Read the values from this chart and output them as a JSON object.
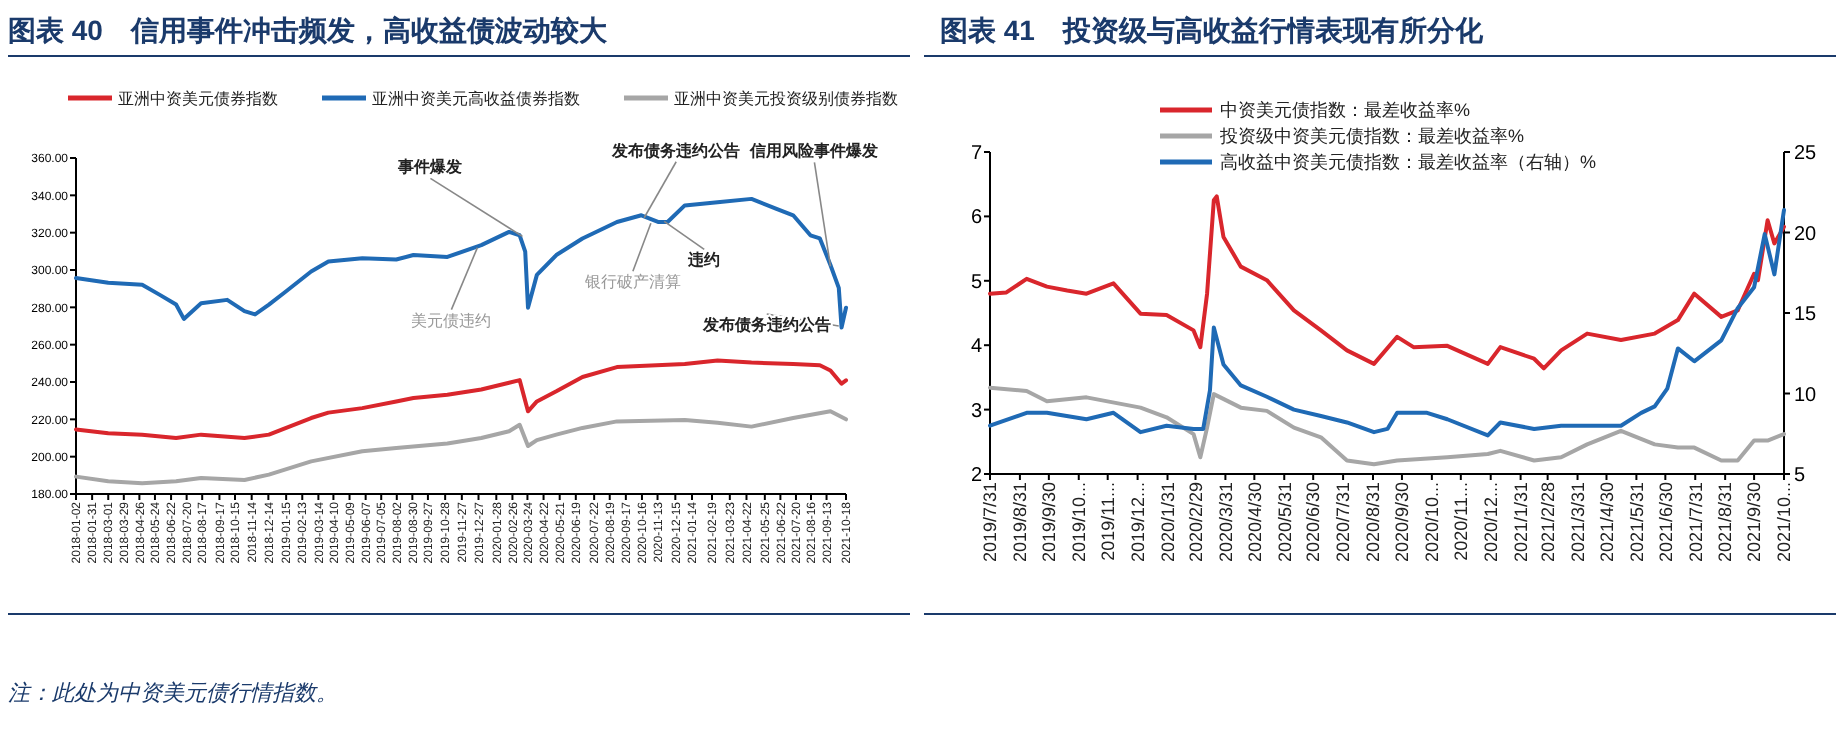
{
  "chart_data": [
    {
      "type": "line",
      "title": "图表 40　信用事件冲击频发，高收益债波动较大",
      "legend": "top",
      "xlim": [
        "2018-01-02",
        "2021-10-18"
      ],
      "ylim": [
        180,
        360
      ],
      "yticks": [
        {
          "value": 180,
          "label": "180.00"
        },
        {
          "value": 200,
          "label": "200.00"
        },
        {
          "value": 220,
          "label": "220.00"
        },
        {
          "value": 240,
          "label": "240.00"
        },
        {
          "value": 260,
          "label": "260.00"
        },
        {
          "value": 280,
          "label": "280.00"
        },
        {
          "value": 300,
          "label": "300.00"
        },
        {
          "value": 320,
          "label": "320.00"
        },
        {
          "value": 340,
          "label": "340.00"
        },
        {
          "value": 360,
          "label": "360.00"
        }
      ],
      "xticks": [
        {
          "value": "2018-01-02",
          "label": "2018-01-02"
        },
        {
          "value": "2018-01-31",
          "label": "2018-01-31"
        },
        {
          "value": "2018-03-01",
          "label": "2018-03-01"
        },
        {
          "value": "2018-03-29",
          "label": "2018-03-29"
        },
        {
          "value": "2018-04-26",
          "label": "2018-04-26"
        },
        {
          "value": "2018-05-24",
          "label": "2018-05-24"
        },
        {
          "value": "2018-06-22",
          "label": "2018-06-22"
        },
        {
          "value": "2018-07-20",
          "label": "2018-07-20"
        },
        {
          "value": "2018-08-17",
          "label": "2018-08-17"
        },
        {
          "value": "2018-09-17",
          "label": "2018-09-17"
        },
        {
          "value": "2018-10-15",
          "label": "2018-10-15"
        },
        {
          "value": "2018-11-14",
          "label": "2018-11-14"
        },
        {
          "value": "2018-12-14",
          "label": "2018-12-14"
        },
        {
          "value": "2019-01-15",
          "label": "2019-01-15"
        },
        {
          "value": "2019-02-13",
          "label": "2019-02-13"
        },
        {
          "value": "2019-03-14",
          "label": "2019-03-14"
        },
        {
          "value": "2019-04-10",
          "label": "2019-04-10"
        },
        {
          "value": "2019-05-09",
          "label": "2019-05-09"
        },
        {
          "value": "2019-06-07",
          "label": "2019-06-07"
        },
        {
          "value": "2019-07-05",
          "label": "2019-07-05"
        },
        {
          "value": "2019-08-02",
          "label": "2019-08-02"
        },
        {
          "value": "2019-08-30",
          "label": "2019-08-30"
        },
        {
          "value": "2019-09-27",
          "label": "2019-09-27"
        },
        {
          "value": "2019-10-28",
          "label": "2019-10-28"
        },
        {
          "value": "2019-11-27",
          "label": "2019-11-27"
        },
        {
          "value": "2019-12-27",
          "label": "2019-12-27"
        },
        {
          "value": "2020-01-28",
          "label": "2020-01-28"
        },
        {
          "value": "2020-02-26",
          "label": "2020-02-26"
        },
        {
          "value": "2020-03-24",
          "label": "2020-03-24"
        },
        {
          "value": "2020-04-22",
          "label": "2020-04-22"
        },
        {
          "value": "2020-05-21",
          "label": "2020-05-21"
        },
        {
          "value": "2020-06-19",
          "label": "2020-06-19"
        },
        {
          "value": "2020-07-22",
          "label": "2020-07-22"
        },
        {
          "value": "2020-08-19",
          "label": "2020-08-19"
        },
        {
          "value": "2020-09-17",
          "label": "2020-09-17"
        },
        {
          "value": "2020-10-16",
          "label": "2020-10-16"
        },
        {
          "value": "2020-11-13",
          "label": "2020-11-13"
        },
        {
          "value": "2020-12-15",
          "label": "2020-12-15"
        },
        {
          "value": "2021-01-14",
          "label": "2021-01-14"
        },
        {
          "value": "2021-02-19",
          "label": "2021-02-19"
        },
        {
          "value": "2021-03-23",
          "label": "2021-03-23"
        },
        {
          "value": "2021-04-22",
          "label": "2021-04-22"
        },
        {
          "value": "2021-05-25",
          "label": "2021-05-25"
        },
        {
          "value": "2021-06-22",
          "label": "2021-06-22"
        },
        {
          "value": "2021-07-20",
          "label": "2021-07-20"
        },
        {
          "value": "2021-08-16",
          "label": "2021-08-16"
        },
        {
          "value": "2021-09-13",
          "label": "2021-09-13"
        },
        {
          "value": "2021-10-18",
          "label": "2021-10-18"
        }
      ],
      "series": [
        {
          "name": "亚洲中资美元债券指数",
          "color": "#d9262c",
          "x": [
            "2018-01-02",
            "2018-03-01",
            "2018-05-01",
            "2018-07-01",
            "2018-08-15",
            "2018-11-01",
            "2018-12-15",
            "2019-03-01",
            "2019-04-01",
            "2019-06-01",
            "2019-08-01",
            "2019-09-01",
            "2019-11-01",
            "2020-01-01",
            "2020-02-20",
            "2020-03-10",
            "2020-03-25",
            "2020-04-10",
            "2020-05-15",
            "2020-07-01",
            "2020-09-01",
            "2021-01-01",
            "2021-03-01",
            "2021-05-01",
            "2021-07-15",
            "2021-09-01",
            "2021-09-20",
            "2021-10-10",
            "2021-10-18"
          ],
          "values": [
            214.6,
            212.5,
            211.8,
            210,
            211.8,
            210,
            211.8,
            220.7,
            223.6,
            226,
            229.6,
            231.4,
            233.2,
            236,
            239.6,
            241,
            224.3,
            229.6,
            235,
            242.7,
            248,
            249.7,
            251.5,
            250.4,
            249.7,
            249,
            246.2,
            239.1,
            240.9
          ]
        },
        {
          "name": "亚洲中资美元高收益债券指数",
          "color": "#1f6ab5",
          "x": [
            "2018-01-02",
            "2018-03-01",
            "2018-05-01",
            "2018-06-01",
            "2018-07-01",
            "2018-07-15",
            "2018-08-15",
            "2018-10-01",
            "2018-11-01",
            "2018-11-20",
            "2018-12-15",
            "2019-01-15",
            "2019-03-01",
            "2019-04-01",
            "2019-06-01",
            "2019-08-01",
            "2019-09-01",
            "2019-11-01",
            "2020-01-01",
            "2020-02-20",
            "2020-03-10",
            "2020-03-20",
            "2020-03-25",
            "2020-04-10",
            "2020-05-15",
            "2020-07-01",
            "2020-09-01",
            "2020-10-15",
            "2020-11-15",
            "2020-12-01",
            "2021-01-01",
            "2021-03-01",
            "2021-05-01",
            "2021-06-15",
            "2021-07-15",
            "2021-08-15",
            "2021-09-01",
            "2021-09-20",
            "2021-10-05",
            "2021-10-10",
            "2021-10-18"
          ],
          "values": [
            295.7,
            293.2,
            292.1,
            286.8,
            281.5,
            273.8,
            282.2,
            284,
            278,
            276.2,
            281.5,
            288.6,
            299.2,
            304.5,
            306.3,
            305.6,
            308,
            307,
            313.3,
            320.4,
            318.6,
            309.8,
            279.8,
            297.4,
            308,
            316.9,
            325.7,
            329.3,
            325.7,
            325.7,
            334.6,
            336.3,
            338.1,
            332.8,
            329.3,
            318.6,
            316.9,
            302.7,
            290.4,
            269.2,
            279.8
          ]
        },
        {
          "name": "亚洲中资美元投资级别债券指数",
          "color": "#a6a6a6",
          "x": [
            "2018-01-02",
            "2018-03-01",
            "2018-05-01",
            "2018-07-01",
            "2018-08-15",
            "2018-11-01",
            "2018-12-15",
            "2019-03-01",
            "2019-06-01",
            "2019-08-01",
            "2019-11-01",
            "2020-01-01",
            "2020-02-20",
            "2020-03-10",
            "2020-03-25",
            "2020-04-10",
            "2020-05-15",
            "2020-07-01",
            "2020-09-01",
            "2021-01-01",
            "2021-03-01",
            "2021-05-01",
            "2021-07-15",
            "2021-09-20",
            "2021-10-18"
          ],
          "values": [
            189.3,
            186.8,
            185.7,
            186.8,
            188.6,
            187.5,
            190.4,
            197.5,
            202.9,
            204.6,
            207.1,
            210,
            213.6,
            217.1,
            205.7,
            208.9,
            211.8,
            215.4,
            218.9,
            219.6,
            218.2,
            216.1,
            220.7,
            224.3,
            220
          ]
        }
      ],
      "annotations": [
        {
          "text": "事件爆发",
          "x": "2020-03-15",
          "y": 318
        },
        {
          "text": "美元债违约",
          "x": "2019-12-25",
          "y": 312
        },
        {
          "text": "发布债务违约公告",
          "x": "2020-10-20",
          "y": 328
        },
        {
          "text": "违约",
          "x": "2020-11-25",
          "y": 326
        },
        {
          "text": "银行破产清算",
          "x": "2020-11-01",
          "y": 325
        },
        {
          "text": "信用风险事件爆发",
          "x": "2021-09-20",
          "y": 302
        },
        {
          "text": "发布债务违约公告",
          "x": "2021-10-05",
          "y": 270
        },
        "注：此处为中资美元债行情指数。"
      ]
    },
    {
      "type": "line",
      "title": "图表 41　投资级与高收益行情表现有所分化",
      "legend": "top",
      "xlim": [
        "2019-07-31",
        "2021-10-31"
      ],
      "ylim": [
        2,
        7
      ],
      "yticks": [
        2,
        3,
        4,
        5,
        6,
        7
      ],
      "y2lim": [
        5,
        25
      ],
      "y2ticks": [
        5,
        10,
        15,
        20,
        25
      ],
      "xticks": [
        {
          "value": "2019-07-31",
          "label": "2019/7/31"
        },
        {
          "value": "2019-08-31",
          "label": "2019/8/31"
        },
        {
          "value": "2019-09-30",
          "label": "2019/9/30"
        },
        {
          "value": "2019-10-31",
          "label": "2019/10..."
        },
        {
          "value": "2019-11-30",
          "label": "2019/11..."
        },
        {
          "value": "2019-12-31",
          "label": "2019/12..."
        },
        {
          "value": "2020-01-31",
          "label": "2020/1/31"
        },
        {
          "value": "2020-02-29",
          "label": "2020/2/29"
        },
        {
          "value": "2020-03-31",
          "label": "2020/3/31"
        },
        {
          "value": "2020-04-30",
          "label": "2020/4/30"
        },
        {
          "value": "2020-05-31",
          "label": "2020/5/31"
        },
        {
          "value": "2020-06-30",
          "label": "2020/6/30"
        },
        {
          "value": "2020-07-31",
          "label": "2020/7/31"
        },
        {
          "value": "2020-08-31",
          "label": "2020/8/31"
        },
        {
          "value": "2020-09-30",
          "label": "2020/9/30"
        },
        {
          "value": "2020-10-31",
          "label": "2020/10..."
        },
        {
          "value": "2020-11-30",
          "label": "2020/11..."
        },
        {
          "value": "2020-12-31",
          "label": "2020/12..."
        },
        {
          "value": "2021-01-31",
          "label": "2021/1/31"
        },
        {
          "value": "2021-02-28",
          "label": "2021/2/28"
        },
        {
          "value": "2021-03-31",
          "label": "2021/3/31"
        },
        {
          "value": "2021-04-30",
          "label": "2021/4/30"
        },
        {
          "value": "2021-05-31",
          "label": "2021/5/31"
        },
        {
          "value": "2021-06-30",
          "label": "2021/6/30"
        },
        {
          "value": "2021-07-31",
          "label": "2021/7/31"
        },
        {
          "value": "2021-08-31",
          "label": "2021/8/31"
        },
        {
          "value": "2021-09-30",
          "label": "2021/9/30"
        },
        {
          "value": "2021-10-31",
          "label": "2021/10..."
        }
      ],
      "series": [
        {
          "name": "中资美元债指数：最差收益率%",
          "color": "#d9262c",
          "x": [
            "2019-07-31",
            "2019-08-17",
            "2019-09-07",
            "2019-09-28",
            "2019-10-19",
            "2019-11-08",
            "2019-12-06",
            "2020-01-03",
            "2020-01-30",
            "2020-02-27",
            "2020-03-05",
            "2020-03-12",
            "2020-03-19",
            "2020-03-22",
            "2020-03-29",
            "2020-04-16",
            "2020-05-13",
            "2020-06-10",
            "2020-07-08",
            "2020-08-04",
            "2020-09-01",
            "2020-09-25",
            "2020-10-12",
            "2020-11-16",
            "2020-12-28",
            "2021-01-10",
            "2021-02-14",
            "2021-02-24",
            "2021-03-14",
            "2021-04-10",
            "2021-05-15",
            "2021-06-19",
            "2021-07-13",
            "2021-07-30",
            "2021-08-27",
            "2021-09-13",
            "2021-09-30",
            "2021-10-04",
            "2021-10-14",
            "2021-10-21",
            "2021-10-31"
          ],
          "values": [
            4.8,
            4.82,
            5.03,
            4.91,
            4.85,
            4.8,
            4.96,
            4.49,
            4.47,
            4.23,
            3.97,
            4.8,
            6.25,
            6.31,
            5.68,
            5.22,
            5.01,
            4.54,
            4.23,
            3.92,
            3.71,
            4.13,
            3.97,
            3.99,
            3.71,
            3.97,
            3.79,
            3.64,
            3.92,
            4.18,
            4.08,
            4.18,
            4.39,
            4.8,
            4.44,
            4.54,
            5.11,
            5.01,
            5.94,
            5.58,
            5.84
          ]
        },
        {
          "name": "投资级中资美元债指数：最差收益率%",
          "color": "#a6a6a6",
          "x": [
            "2019-07-31",
            "2019-09-07",
            "2019-09-28",
            "2019-11-08",
            "2020-01-03",
            "2020-01-30",
            "2020-02-27",
            "2020-03-05",
            "2020-03-12",
            "2020-03-19",
            "2020-04-16",
            "2020-05-13",
            "2020-06-10",
            "2020-07-08",
            "2020-08-04",
            "2020-09-01",
            "2020-09-25",
            "2020-11-16",
            "2020-12-28",
            "2021-01-10",
            "2021-02-14",
            "2021-03-14",
            "2021-04-10",
            "2021-05-15",
            "2021-06-19",
            "2021-07-13",
            "2021-07-30",
            "2021-08-27",
            "2021-09-13",
            "2021-09-30",
            "2021-10-14",
            "2021-10-31"
          ],
          "values": [
            3.34,
            3.29,
            3.13,
            3.19,
            3.03,
            2.88,
            2.62,
            2.26,
            2.72,
            3.24,
            3.03,
            2.98,
            2.72,
            2.57,
            2.21,
            2.15,
            2.21,
            2.26,
            2.31,
            2.36,
            2.21,
            2.26,
            2.46,
            2.67,
            2.46,
            2.41,
            2.41,
            2.21,
            2.21,
            2.52,
            2.52,
            2.62
          ]
        },
        {
          "name": "高收益中资美元债指数：最差收益率（右轴）%",
          "color": "#1f6ab5",
          "axis": "y2",
          "x": [
            "2019-07-31",
            "2019-09-07",
            "2019-09-28",
            "2019-11-08",
            "2019-12-06",
            "2020-01-03",
            "2020-01-30",
            "2020-02-27",
            "2020-03-08",
            "2020-03-15",
            "2020-03-19",
            "2020-03-29",
            "2020-04-16",
            "2020-05-13",
            "2020-06-10",
            "2020-07-08",
            "2020-08-04",
            "2020-09-01",
            "2020-09-15",
            "2020-09-25",
            "2020-10-26",
            "2020-11-16",
            "2020-12-28",
            "2021-01-10",
            "2021-02-14",
            "2021-03-14",
            "2021-04-10",
            "2021-05-15",
            "2021-06-05",
            "2021-06-19",
            "2021-07-02",
            "2021-07-13",
            "2021-07-30",
            "2021-08-27",
            "2021-09-13",
            "2021-09-30",
            "2021-10-11",
            "2021-10-21",
            "2021-10-31"
          ],
          "values": [
            8.0,
            8.8,
            8.8,
            8.4,
            8.8,
            7.6,
            8.0,
            7.8,
            7.8,
            10.2,
            14.1,
            11.8,
            10.5,
            9.8,
            9.0,
            8.6,
            8.2,
            7.6,
            7.8,
            8.8,
            8.8,
            8.4,
            7.4,
            8.2,
            7.8,
            8.0,
            8.0,
            8.0,
            8.8,
            9.2,
            10.3,
            12.8,
            12.0,
            13.3,
            15.3,
            16.6,
            19.9,
            17.4,
            21.4
          ]
        }
      ]
    }
  ]
}
